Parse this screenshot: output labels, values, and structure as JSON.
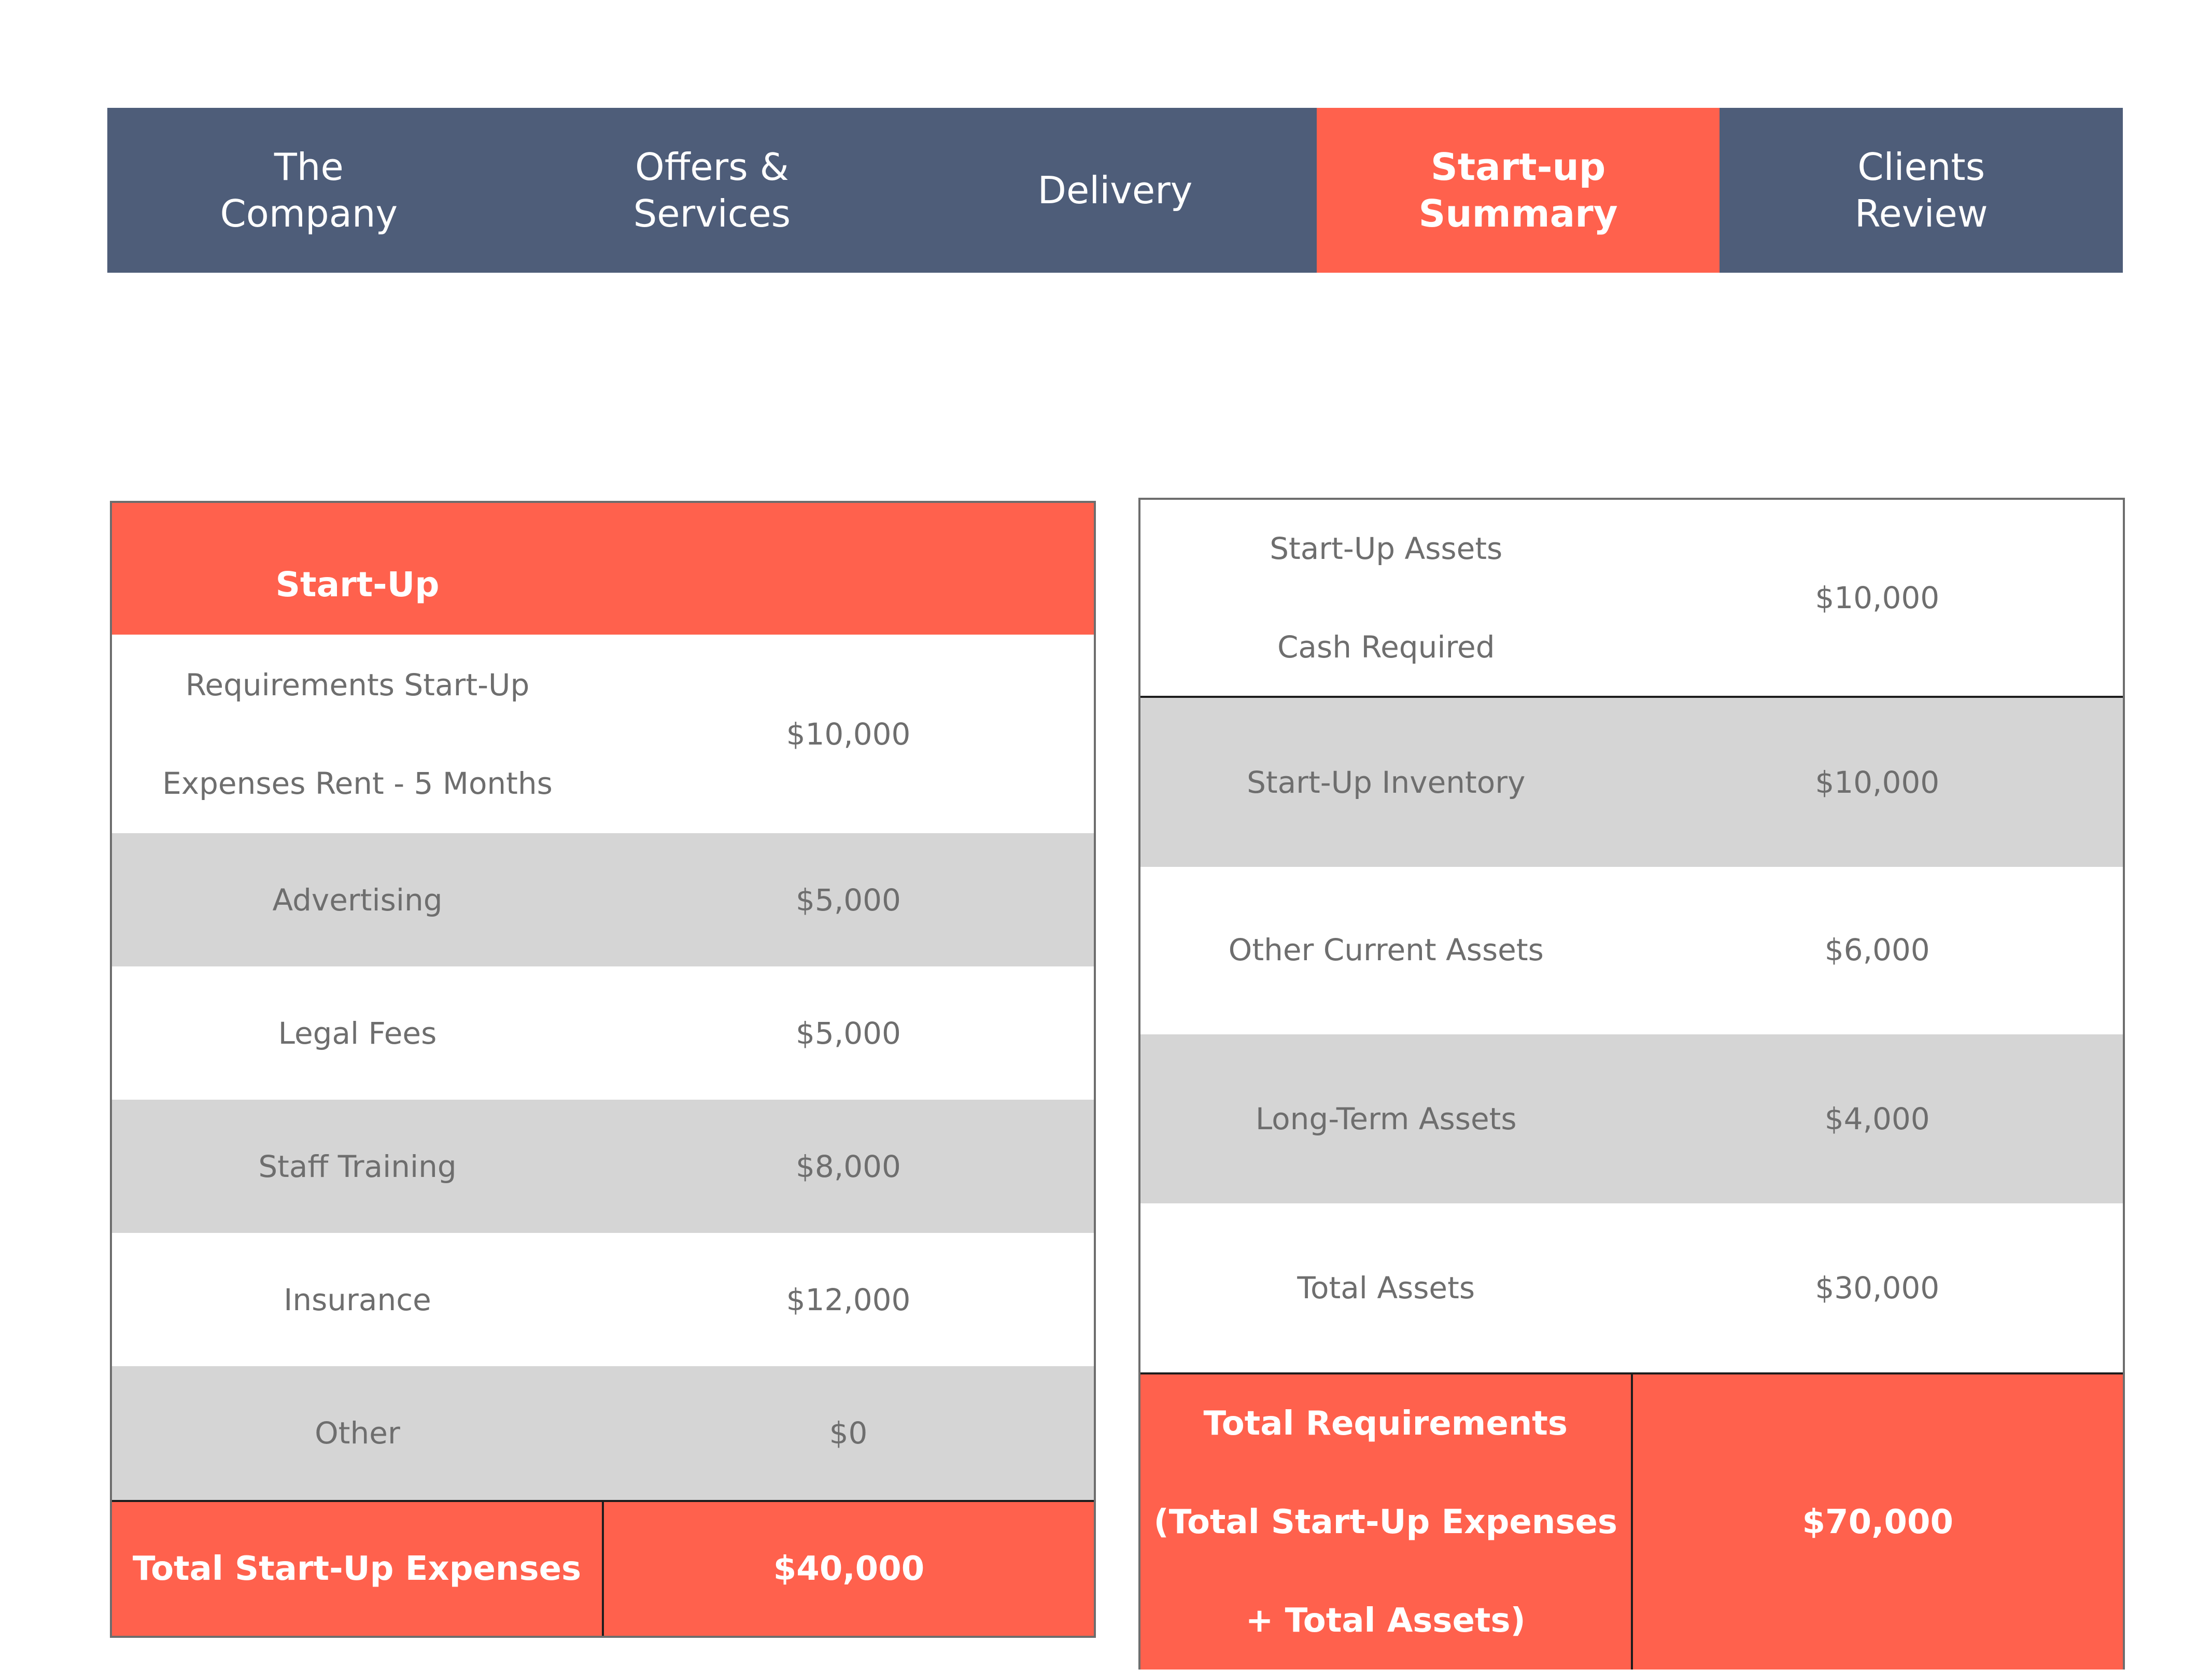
{
  "nav": {
    "tabs": [
      {
        "label": "The\nCompany",
        "active": false
      },
      {
        "label": "Offers &\nServices",
        "active": false
      },
      {
        "label": "Delivery",
        "active": false
      },
      {
        "label": "Start-up\nSummary",
        "active": true
      },
      {
        "label": "Clients\nReview",
        "active": false
      }
    ]
  },
  "colors": {
    "nav_background": "#4e5d79",
    "accent": "#ff614d",
    "row_grey": "#d5d5d5",
    "text_grey": "#6e6e6e"
  },
  "startup_table": {
    "header": "Start-Up",
    "rows": [
      {
        "label": "Requirements Start-Up\nExpenses Rent - 5 Months",
        "value": "$10,000"
      },
      {
        "label": "Advertising",
        "value": "$5,000"
      },
      {
        "label": "Legal Fees",
        "value": "$5,000"
      },
      {
        "label": "Staff Training",
        "value": "$8,000"
      },
      {
        "label": "Insurance",
        "value": "$12,000"
      },
      {
        "label": "Other",
        "value": "$0"
      }
    ],
    "total": {
      "label": "Total Start-Up Expenses",
      "value": "$40,000"
    }
  },
  "assets_table": {
    "rows": [
      {
        "label": "Start-Up Assets\nCash Required",
        "value": "$10,000"
      },
      {
        "label": "Start-Up Inventory",
        "value": "$10,000"
      },
      {
        "label": "Other Current Assets",
        "value": "$6,000"
      },
      {
        "label": "Long-Term Assets",
        "value": "$4,000"
      },
      {
        "label": "Total Assets",
        "value": "$30,000"
      }
    ],
    "total": {
      "label": "Total Requirements\n(Total Start-Up Expenses\n+ Total Assets)",
      "value": "$70,000"
    }
  }
}
